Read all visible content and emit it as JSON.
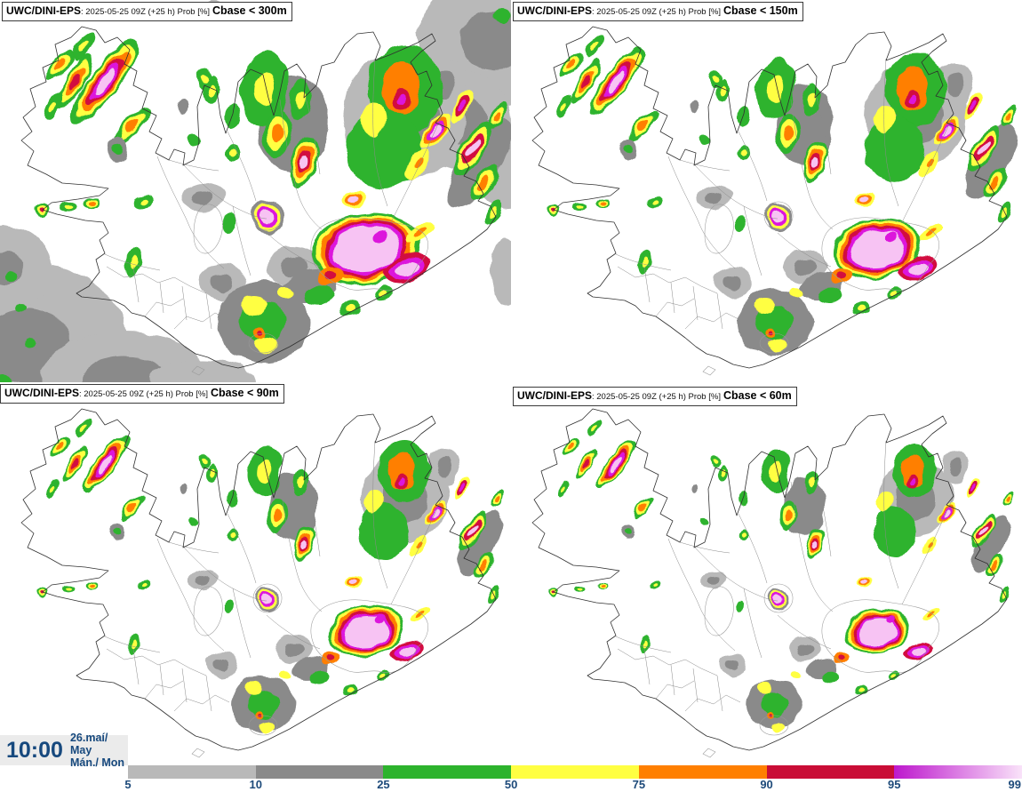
{
  "panels": [
    {
      "model": "UWC/DINI-EPS",
      "meta": ": 2025-05-25 09Z (+25 h) Prob [%]",
      "threshold": "Cbase < 300m"
    },
    {
      "model": "UWC/DINI-EPS",
      "meta": ": 2025-05-25 09Z (+25 h) Prob [%]",
      "threshold": "Cbase < 150m"
    },
    {
      "model": "UWC/DINI-EPS",
      "meta": ": 2025-05-25 09Z (+25 h) Prob [%]",
      "threshold": "Cbase < 90m"
    },
    {
      "model": "UWC/DINI-EPS",
      "meta": ": 2025-05-25 09Z (+25 h) Prob [%]",
      "threshold": "Cbase < 60m"
    }
  ],
  "timebox": {
    "time": "10:00",
    "date_top": "26.maí/ May",
    "date_bottom": "Mán./ Mon"
  },
  "colorbar": {
    "label_color": "#1d4a7a",
    "segments": [
      {
        "label": "5",
        "color": "#b9b9b9"
      },
      {
        "label": "10",
        "color": "#8a8a8a"
      },
      {
        "label": "25",
        "color": "#2db32d"
      },
      {
        "label": "50",
        "color": "#ffff42"
      },
      {
        "label": "75",
        "color": "#ff7f00"
      },
      {
        "label": "90",
        "color": "#c90d36"
      },
      {
        "label": "95",
        "color": "#bd18cd",
        "fade_to": "#f9e2f9"
      }
    ],
    "end_label": "99"
  },
  "map_palette": [
    "#b9b9b9",
    "#8a8a8a",
    "#2db32d",
    "#ffff42",
    "#ff7f00",
    "#d2103f",
    "#dc14dc",
    "#f7c3f3"
  ]
}
